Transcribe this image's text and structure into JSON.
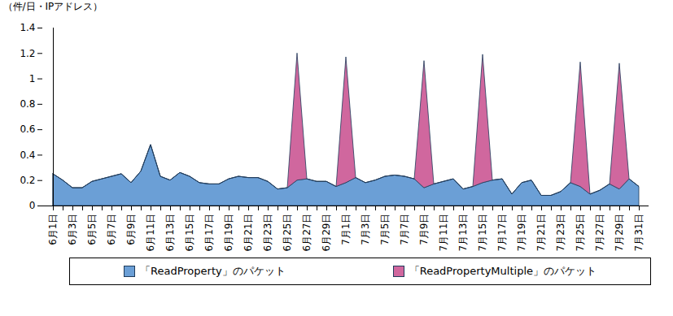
{
  "chart_data": {
    "type": "area",
    "stacked": true,
    "y_label": "（件/日・IPアドレス）",
    "categories": [
      "6月1日",
      null,
      "6月3日",
      null,
      "6月5日",
      null,
      "6月7日",
      null,
      "6月9日",
      null,
      "6月11日",
      null,
      "6月13日",
      null,
      "6月15日",
      null,
      "6月17日",
      null,
      "6月19日",
      null,
      "6月21日",
      null,
      "6月23日",
      null,
      "6月25日",
      null,
      "6月27日",
      null,
      "6月29日",
      null,
      "7月1日",
      null,
      "7月3日",
      null,
      "7月5日",
      null,
      "7月7日",
      null,
      "7月9日",
      null,
      "7月11日",
      null,
      "7月13日",
      null,
      "7月15日",
      null,
      "7月17日",
      null,
      "7月19日",
      null,
      "7月21日",
      null,
      "7月23日",
      null,
      "7月25日",
      null,
      "7月27日",
      null,
      "7月29日",
      null,
      "7月31日"
    ],
    "series": [
      {
        "name": "「ReadProperty」のパケット",
        "color": "#6b9fd6",
        "values": [
          0.25,
          0.2,
          0.14,
          0.14,
          0.19,
          0.21,
          0.23,
          0.25,
          0.18,
          0.27,
          0.48,
          0.23,
          0.2,
          0.26,
          0.23,
          0.18,
          0.17,
          0.17,
          0.21,
          0.23,
          0.22,
          0.22,
          0.19,
          0.13,
          0.14,
          0.2,
          0.21,
          0.19,
          0.19,
          0.15,
          0.18,
          0.22,
          0.18,
          0.2,
          0.23,
          0.24,
          0.23,
          0.21,
          0.14,
          0.17,
          0.19,
          0.21,
          0.13,
          0.15,
          0.18,
          0.2,
          0.21,
          0.09,
          0.18,
          0.2,
          0.08,
          0.08,
          0.11,
          0.18,
          0.15,
          0.09,
          0.12,
          0.17,
          0.13,
          0.21,
          0.15
        ]
      },
      {
        "name": "「ReadPropertyMultiple」のパケット",
        "color": "#d0679e",
        "values": [
          0,
          0,
          0,
          0,
          0,
          0,
          0,
          0,
          0,
          0,
          0,
          0,
          0,
          0,
          0,
          0,
          0,
          0,
          0,
          0,
          0,
          0,
          0,
          0,
          0,
          1.0,
          0,
          0,
          0,
          0,
          0.99,
          0,
          0,
          0,
          0,
          0,
          0,
          0,
          1.0,
          0,
          0,
          0,
          0,
          0,
          1.01,
          0,
          0,
          0,
          0,
          0,
          0,
          0,
          0,
          0,
          0.98,
          0,
          0,
          0,
          0.99,
          0,
          0
        ]
      }
    ],
    "ylim": [
      0,
      1.4
    ],
    "yticks": [
      0,
      0.2,
      0.4,
      0.6,
      0.8,
      1,
      1.2,
      1.4
    ],
    "grid": false,
    "legend": "bottom"
  }
}
